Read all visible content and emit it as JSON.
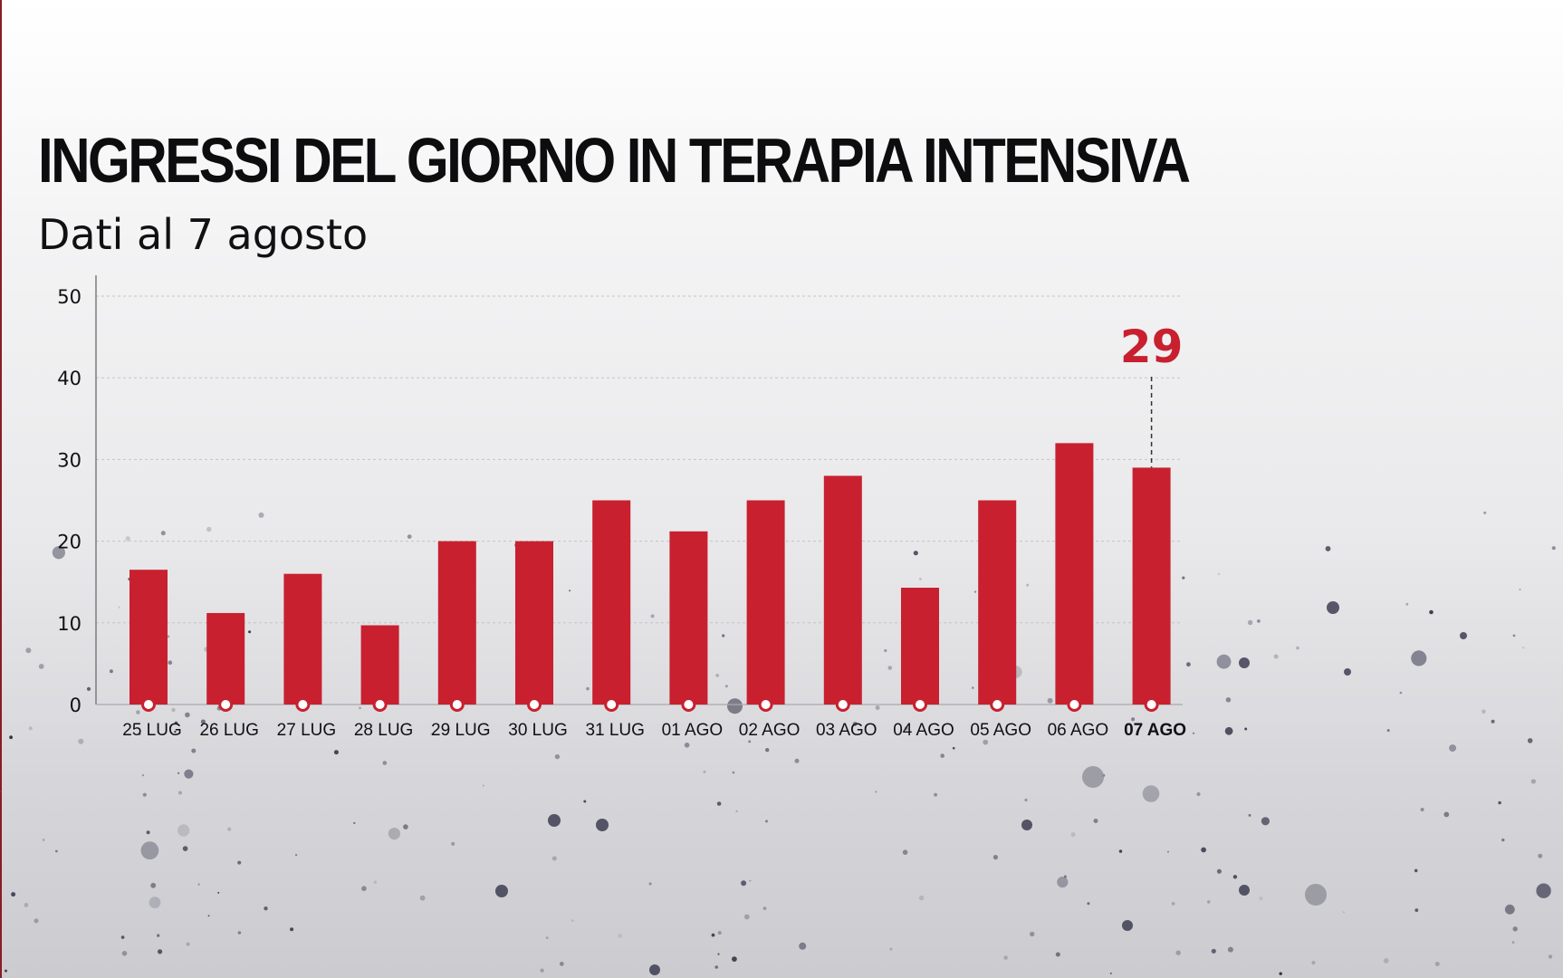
{
  "title": "INGRESSI DEL GIORNO IN TERAPIA INTENSIVA",
  "subtitle": "Dati al 7 agosto",
  "colors": {
    "bar": "#c8202f",
    "highlight_label": "#c8202f",
    "text": "#111114",
    "grid": "#c4c4c8"
  },
  "chart_data": {
    "type": "bar",
    "title": "INGRESSI DEL GIORNO IN TERAPIA INTENSIVA",
    "subtitle": "Dati al 7 agosto",
    "xlabel": "",
    "ylabel": "",
    "ylim": [
      0,
      50
    ],
    "yticks": [
      0,
      10,
      20,
      30,
      40,
      50
    ],
    "grid": true,
    "categories": [
      "25 LUG",
      "26 LUG",
      "27 LUG",
      "28 LUG",
      "29 LUG",
      "30 LUG",
      "31 LUG",
      "01 AGO",
      "02 AGO",
      "03 AGO",
      "04 AGO",
      "05 AGO",
      "06 AGO",
      "07 AGO"
    ],
    "values": [
      16.5,
      11.2,
      16,
      9.7,
      20,
      20,
      25,
      21.2,
      25,
      28,
      14.3,
      25,
      32,
      29
    ],
    "highlight": {
      "category": "07 AGO",
      "label": "29"
    }
  }
}
